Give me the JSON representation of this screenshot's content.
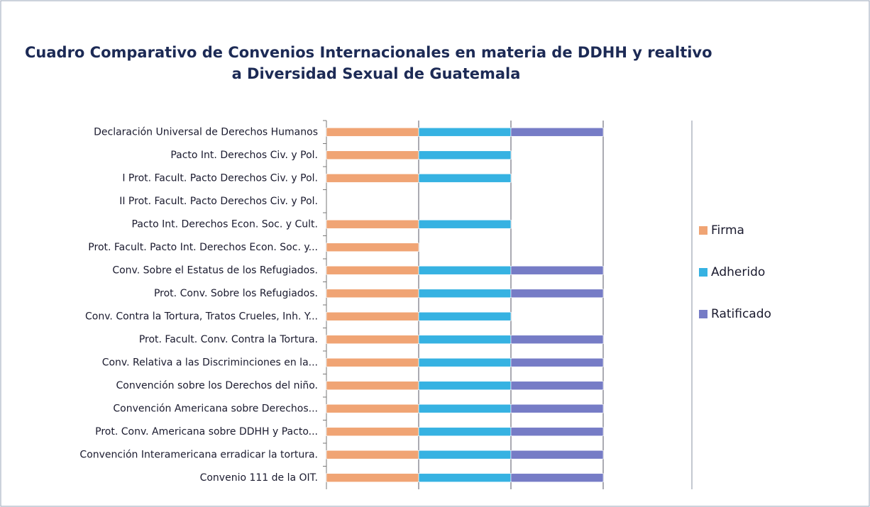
{
  "chart_data": {
    "type": "stacked_barh",
    "title": [
      "Cuadro Comparativo de Convenios Internacionales en materia de DDHH y realtivo",
      "a  Diversidad Sexual de Guatemala"
    ],
    "categories": [
      "Declaración Universal de Derechos Humanos",
      "Pacto Int. Derechos Civ. y Pol.",
      "I Prot. Facult. Pacto Derechos Civ. y Pol.",
      "II Prot. Facult. Pacto Derechos Civ. y Pol.",
      "Pacto Int. Derechos Econ. Soc. y Cult.",
      "Prot. Facult. Pacto Int. Derechos Econ. Soc. y...",
      "Conv.  Sobre el Estatus de los Refugiados.",
      "Prot. Conv. Sobre los Refugiados.",
      "Conv. Contra la Tortura, Tratos Crueles, Inh. Y...",
      "Prot. Facult. Conv. Contra la Tortura.",
      "Conv. Relativa a las Discriminciones en la...",
      "Convención sobre los Derechos del niño.",
      "Convención Americana sobre Derechos...",
      "Prot. Conv. Americana sobre DDHH y Pacto...",
      "Convención Interamericana erradicar la tortura.",
      "Convenio 111 de la OIT."
    ],
    "series": [
      {
        "name": "Firma",
        "color": "#f0a474",
        "values": [
          1,
          1,
          1,
          0,
          1,
          1,
          1,
          1,
          1,
          1,
          1,
          1,
          1,
          1,
          1,
          1
        ]
      },
      {
        "name": "Adherido",
        "color": "#36b2e2",
        "values": [
          1,
          1,
          1,
          0,
          1,
          0,
          1,
          1,
          1,
          1,
          1,
          1,
          1,
          1,
          1,
          1
        ]
      },
      {
        "name": "Ratificado",
        "color": "#767cc6",
        "values": [
          1,
          0,
          0,
          0,
          0,
          0,
          1,
          1,
          0,
          1,
          1,
          1,
          1,
          1,
          1,
          1
        ]
      }
    ],
    "xlim": [
      0,
      3
    ],
    "xticks": [
      0,
      1,
      2,
      3
    ],
    "grid": true,
    "legend": "right"
  }
}
